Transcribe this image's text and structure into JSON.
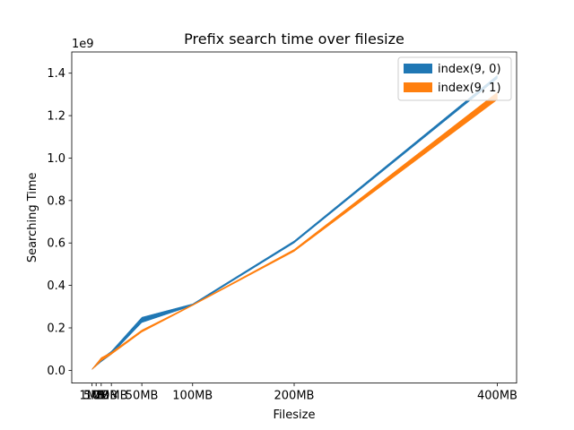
{
  "chart_data": {
    "type": "area",
    "title": "Prefix search time over filesize",
    "xlabel": "Filesize",
    "ylabel": "Searching Time",
    "y_offset_text": "1e9",
    "x": [
      1,
      5,
      10,
      20,
      50,
      100,
      200,
      400
    ],
    "x_tick_values": [
      1,
      5,
      10,
      20,
      50,
      100,
      200,
      400
    ],
    "x_tick_labels": [
      "1MB",
      "5MB",
      "10MB",
      "20MB",
      "50MB",
      "100MB",
      "200MB",
      "400MB"
    ],
    "y_tick_values": [
      0.0,
      0.2,
      0.4,
      0.6,
      0.8,
      1.0,
      1.2,
      1.4
    ],
    "y_tick_labels": [
      "0.0",
      "0.2",
      "0.4",
      "0.6",
      "0.8",
      "1.0",
      "1.2",
      "1.4"
    ],
    "xlim": [
      -19,
      419
    ],
    "ylim": [
      -0.06,
      1.5
    ],
    "grid": false,
    "legend_position": "upper right",
    "series": [
      {
        "name": "index(9, 0)",
        "color": "#1f77b4",
        "lower": [
          0.004,
          0.02,
          0.04,
          0.075,
          0.225,
          0.305,
          0.6,
          1.375
        ],
        "upper": [
          0.006,
          0.03,
          0.055,
          0.09,
          0.25,
          0.313,
          0.61,
          1.39
        ]
      },
      {
        "name": "index(9, 1)",
        "color": "#ff7f0e",
        "lower": [
          0.004,
          0.02,
          0.045,
          0.075,
          0.18,
          0.305,
          0.56,
          1.275
        ],
        "upper": [
          0.006,
          0.03,
          0.06,
          0.085,
          0.19,
          0.31,
          0.57,
          1.31
        ]
      }
    ]
  }
}
